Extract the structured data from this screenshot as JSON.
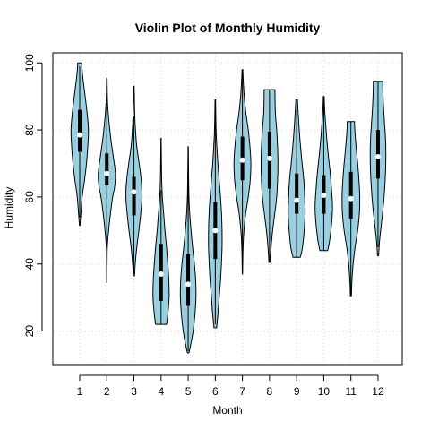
{
  "chart_data": {
    "type": "violin",
    "title": "Violin Plot of Monthly Humidity",
    "xlabel": "Month",
    "ylabel": "Humidity",
    "ylim": [
      10,
      103
    ],
    "yticks": [
      20,
      40,
      60,
      80,
      100
    ],
    "grid": true,
    "fill_color": "#9ACFE0",
    "categories": [
      "1",
      "2",
      "3",
      "4",
      "5",
      "6",
      "7",
      "8",
      "9",
      "10",
      "11",
      "12"
    ],
    "violins": [
      {
        "month": "1",
        "min": 51.5,
        "max": 100,
        "q1": 73.5,
        "median": 78.5,
        "q3": 86,
        "whisker_low": 54,
        "whisker_high": 99,
        "profile": [
          [
            51.5,
            0.02
          ],
          [
            55,
            0.09
          ],
          [
            60,
            0.19
          ],
          [
            65,
            0.37
          ],
          [
            70,
            0.52
          ],
          [
            75,
            0.62
          ],
          [
            80,
            0.67
          ],
          [
            85,
            0.57
          ],
          [
            90,
            0.42
          ],
          [
            95,
            0.26
          ],
          [
            98,
            0.18
          ],
          [
            100,
            0.15
          ]
        ]
      },
      {
        "month": "2",
        "min": 34.5,
        "max": 95.5,
        "q1": 63.5,
        "median": 67,
        "q3": 73,
        "whisker_low": 34.5,
        "whisker_high": 88,
        "profile": [
          [
            34.5,
            0.01
          ],
          [
            40,
            0.02
          ],
          [
            45,
            0.04
          ],
          [
            50,
            0.14
          ],
          [
            55,
            0.28
          ],
          [
            60,
            0.45
          ],
          [
            63,
            0.6
          ],
          [
            67,
            0.66
          ],
          [
            72,
            0.5
          ],
          [
            77,
            0.32
          ],
          [
            82,
            0.18
          ],
          [
            88,
            0.06
          ],
          [
            95.5,
            0.02
          ]
        ]
      },
      {
        "month": "3",
        "min": 36.5,
        "max": 93,
        "q1": 54.5,
        "median": 61.5,
        "q3": 66,
        "whisker_low": 37,
        "whisker_high": 84,
        "profile": [
          [
            36.5,
            0.05
          ],
          [
            40,
            0.1
          ],
          [
            45,
            0.22
          ],
          [
            50,
            0.38
          ],
          [
            55,
            0.52
          ],
          [
            60,
            0.62
          ],
          [
            65,
            0.56
          ],
          [
            70,
            0.4
          ],
          [
            75,
            0.22
          ],
          [
            80,
            0.12
          ],
          [
            85,
            0.06
          ],
          [
            93,
            0.02
          ]
        ]
      },
      {
        "month": "4",
        "min": 22,
        "max": 77.5,
        "q1": 29,
        "median": 37,
        "q3": 46,
        "whisker_low": 22,
        "whisker_high": 62,
        "profile": [
          [
            22,
            0.42
          ],
          [
            25,
            0.52
          ],
          [
            30,
            0.62
          ],
          [
            35,
            0.6
          ],
          [
            40,
            0.52
          ],
          [
            45,
            0.42
          ],
          [
            50,
            0.3
          ],
          [
            55,
            0.2
          ],
          [
            60,
            0.1
          ],
          [
            65,
            0.05
          ],
          [
            70,
            0.03
          ],
          [
            77.5,
            0.01
          ]
        ]
      },
      {
        "month": "5",
        "min": 13.5,
        "max": 75,
        "q1": 27.5,
        "median": 34,
        "q3": 43,
        "whisker_low": 14,
        "whisker_high": 75,
        "profile": [
          [
            13.5,
            0.06
          ],
          [
            16,
            0.2
          ],
          [
            20,
            0.38
          ],
          [
            25,
            0.52
          ],
          [
            30,
            0.6
          ],
          [
            35,
            0.58
          ],
          [
            40,
            0.48
          ],
          [
            45,
            0.34
          ],
          [
            50,
            0.22
          ],
          [
            55,
            0.12
          ],
          [
            60,
            0.06
          ],
          [
            67,
            0.03
          ],
          [
            75,
            0.01
          ]
        ]
      },
      {
        "month": "6",
        "min": 21,
        "max": 89,
        "q1": 41.5,
        "median": 50,
        "q3": 58.5,
        "whisker_low": 22,
        "whisker_high": 86,
        "profile": [
          [
            21,
            0.1
          ],
          [
            25,
            0.2
          ],
          [
            30,
            0.3
          ],
          [
            35,
            0.4
          ],
          [
            40,
            0.47
          ],
          [
            45,
            0.52
          ],
          [
            50,
            0.52
          ],
          [
            55,
            0.48
          ],
          [
            60,
            0.4
          ],
          [
            65,
            0.3
          ],
          [
            70,
            0.2
          ],
          [
            75,
            0.12
          ],
          [
            80,
            0.06
          ],
          [
            89,
            0.02
          ]
        ]
      },
      {
        "month": "7",
        "min": 37,
        "max": 98,
        "q1": 65,
        "median": 71,
        "q3": 78,
        "whisker_low": 40,
        "whisker_high": 98,
        "profile": [
          [
            37,
            0.01
          ],
          [
            45,
            0.05
          ],
          [
            50,
            0.12
          ],
          [
            55,
            0.25
          ],
          [
            60,
            0.45
          ],
          [
            65,
            0.6
          ],
          [
            70,
            0.65
          ],
          [
            75,
            0.58
          ],
          [
            80,
            0.45
          ],
          [
            85,
            0.27
          ],
          [
            90,
            0.14
          ],
          [
            95,
            0.06
          ],
          [
            98,
            0.03
          ]
        ]
      },
      {
        "month": "8",
        "min": 40.5,
        "max": 92,
        "q1": 62.5,
        "median": 71.5,
        "q3": 79.5,
        "whisker_low": 40.5,
        "whisker_high": 92,
        "profile": [
          [
            40.5,
            0.05
          ],
          [
            45,
            0.12
          ],
          [
            50,
            0.24
          ],
          [
            55,
            0.4
          ],
          [
            60,
            0.55
          ],
          [
            65,
            0.62
          ],
          [
            70,
            0.65
          ],
          [
            75,
            0.62
          ],
          [
            80,
            0.55
          ],
          [
            85,
            0.45
          ],
          [
            90,
            0.42
          ],
          [
            92,
            0.42
          ]
        ]
      },
      {
        "month": "9",
        "min": 42,
        "max": 89,
        "q1": 55,
        "median": 59,
        "q3": 67,
        "whisker_low": 42,
        "whisker_high": 86,
        "profile": [
          [
            42,
            0.28
          ],
          [
            45,
            0.45
          ],
          [
            50,
            0.58
          ],
          [
            55,
            0.65
          ],
          [
            60,
            0.62
          ],
          [
            65,
            0.55
          ],
          [
            70,
            0.42
          ],
          [
            75,
            0.3
          ],
          [
            80,
            0.2
          ],
          [
            85,
            0.12
          ],
          [
            89,
            0.06
          ]
        ]
      },
      {
        "month": "10",
        "min": 44,
        "max": 90,
        "q1": 55,
        "median": 60.5,
        "q3": 66.5,
        "whisker_low": 44,
        "whisker_high": 90,
        "profile": [
          [
            44,
            0.3
          ],
          [
            47,
            0.45
          ],
          [
            52,
            0.6
          ],
          [
            57,
            0.67
          ],
          [
            62,
            0.6
          ],
          [
            67,
            0.5
          ],
          [
            72,
            0.36
          ],
          [
            77,
            0.24
          ],
          [
            82,
            0.14
          ],
          [
            86,
            0.07
          ],
          [
            90,
            0.03
          ]
        ]
      },
      {
        "month": "11",
        "min": 30.5,
        "max": 82.5,
        "q1": 53.5,
        "median": 59.5,
        "q3": 67.5,
        "whisker_low": 30.5,
        "whisker_high": 82.5,
        "profile": [
          [
            30.5,
            0.04
          ],
          [
            35,
            0.08
          ],
          [
            40,
            0.17
          ],
          [
            45,
            0.32
          ],
          [
            50,
            0.52
          ],
          [
            55,
            0.65
          ],
          [
            60,
            0.68
          ],
          [
            65,
            0.62
          ],
          [
            70,
            0.52
          ],
          [
            75,
            0.4
          ],
          [
            80,
            0.3
          ],
          [
            82.5,
            0.28
          ]
        ]
      },
      {
        "month": "12",
        "min": 42.5,
        "max": 94.5,
        "q1": 65.5,
        "median": 72,
        "q3": 80,
        "whisker_low": 45,
        "whisker_high": 94.5,
        "profile": [
          [
            42.5,
            0.04
          ],
          [
            47,
            0.12
          ],
          [
            52,
            0.26
          ],
          [
            57,
            0.4
          ],
          [
            62,
            0.5
          ],
          [
            67,
            0.57
          ],
          [
            72,
            0.6
          ],
          [
            77,
            0.58
          ],
          [
            82,
            0.5
          ],
          [
            87,
            0.42
          ],
          [
            92,
            0.37
          ],
          [
            94.5,
            0.37
          ]
        ]
      }
    ]
  }
}
